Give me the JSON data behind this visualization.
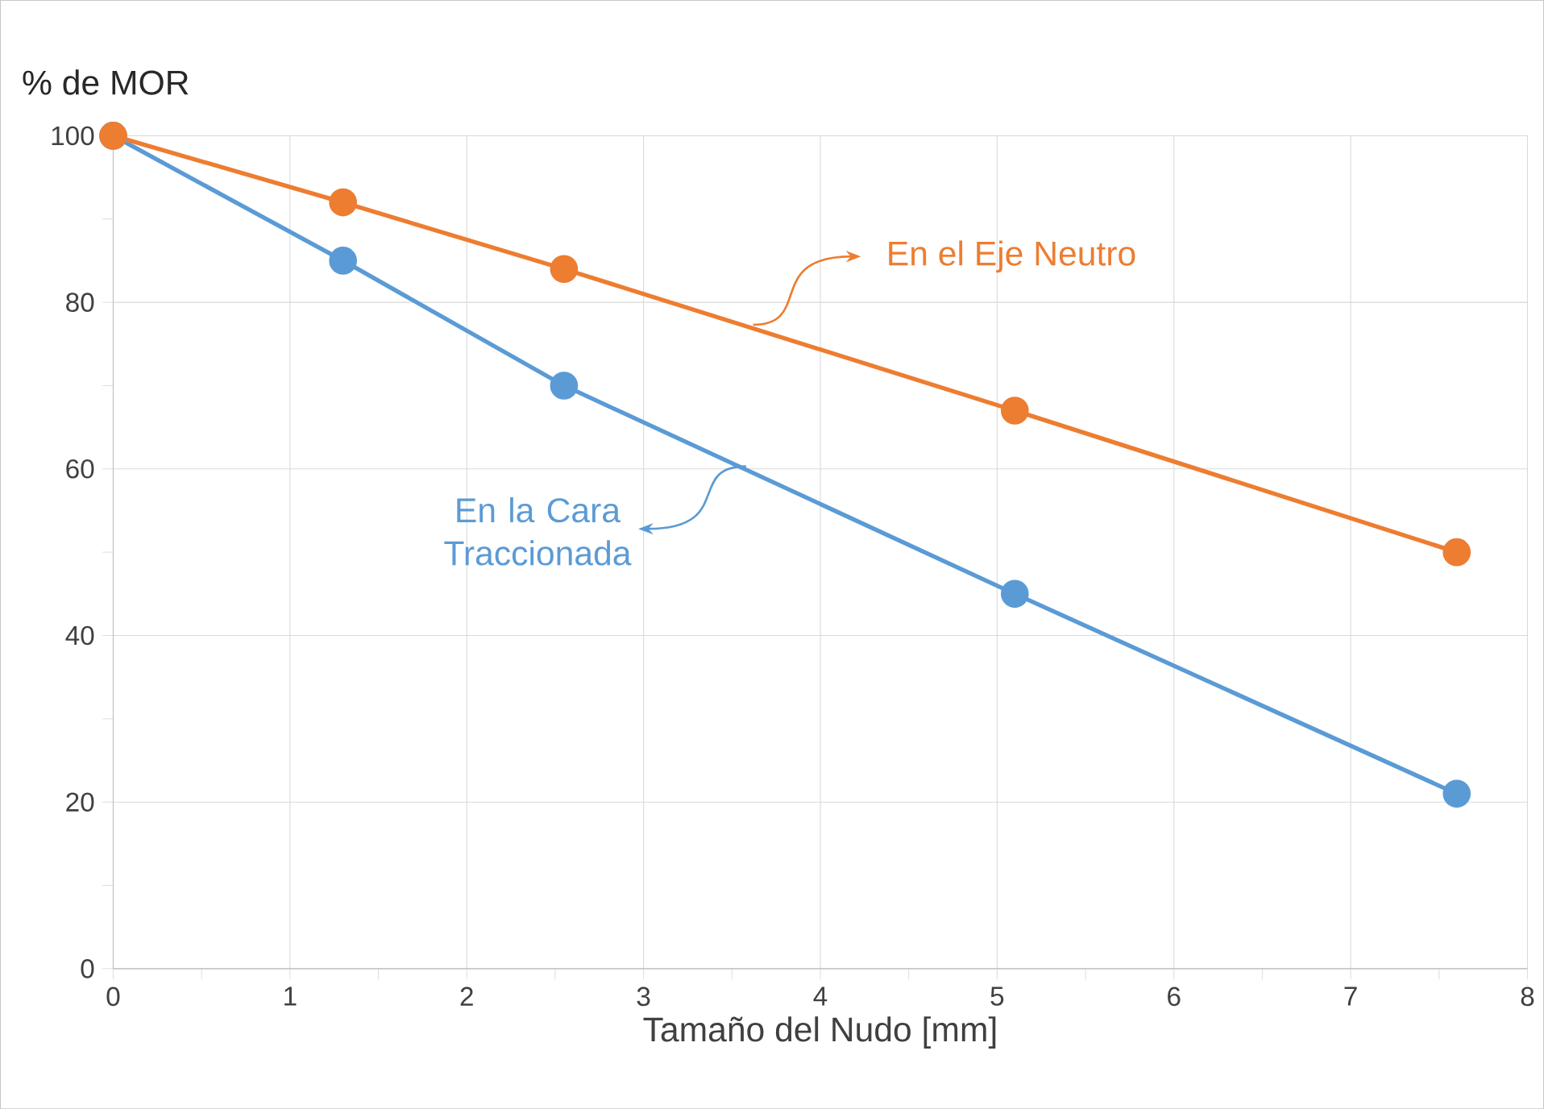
{
  "chart_data": {
    "type": "line",
    "xlabel": "Tamaño del Nudo [mm]",
    "ylabel": "% de MOR",
    "x": [
      0,
      1.3,
      2.55,
      5.1,
      7.6
    ],
    "series": [
      {
        "name": "En el Eje Neutro",
        "color": "#ed7d31",
        "values": [
          100,
          92,
          84,
          67,
          50
        ]
      },
      {
        "name": "En la Cara Traccionada",
        "color": "#5b9bd5",
        "values": [
          100,
          85,
          70,
          45,
          21
        ]
      }
    ],
    "xlim": [
      0,
      8
    ],
    "ylim": [
      0,
      100
    ],
    "xticks": [
      0,
      {
        "value": 0.5,
        "label": null
      },
      1,
      {
        "value": 1.5,
        "label": null
      },
      2,
      {
        "value": 2.5,
        "label": null
      },
      3,
      {
        "value": 3.5,
        "label": null
      },
      4,
      {
        "value": 4.5,
        "label": null
      },
      5,
      {
        "value": 5.5,
        "label": null
      },
      6,
      {
        "value": 6.5,
        "label": null
      },
      7,
      {
        "value": 7.5,
        "label": null
      },
      8
    ],
    "yticks": [
      0,
      {
        "value": 10,
        "label": null
      },
      20,
      {
        "value": 30,
        "label": null
      },
      40,
      {
        "value": 50,
        "label": null
      },
      60,
      {
        "value": 70,
        "label": null
      },
      80,
      {
        "value": 90,
        "label": null
      },
      100
    ],
    "grid": true,
    "legend": "top right",
    "marker": "circle",
    "line_style": "solid"
  }
}
